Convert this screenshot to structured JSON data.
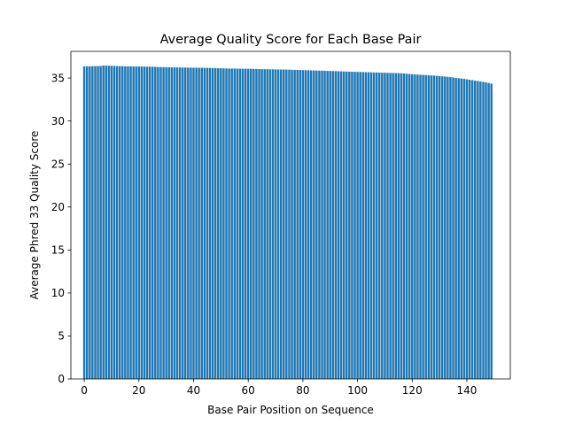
{
  "chart_data": {
    "type": "bar",
    "title": "Average Quality Score for Each Base Pair",
    "xlabel": "Base Pair Position on Sequence",
    "ylabel": "Average Phred 33 Quality Score",
    "xlim": [
      -4.9,
      155.9
    ],
    "ylim": [
      0,
      38.1
    ],
    "xticks": [
      0,
      20,
      40,
      60,
      80,
      100,
      120,
      140
    ],
    "yticks": [
      0,
      5,
      10,
      15,
      20,
      25,
      30,
      35
    ],
    "grid": false,
    "color": "#1f77b4",
    "x": [
      0,
      1,
      2,
      3,
      4,
      5,
      6,
      7,
      8,
      9,
      10,
      11,
      12,
      13,
      14,
      15,
      16,
      17,
      18,
      19,
      20,
      21,
      22,
      23,
      24,
      25,
      26,
      27,
      28,
      29,
      30,
      31,
      32,
      33,
      34,
      35,
      36,
      37,
      38,
      39,
      40,
      41,
      42,
      43,
      44,
      45,
      46,
      47,
      48,
      49,
      50,
      51,
      52,
      53,
      54,
      55,
      56,
      57,
      58,
      59,
      60,
      61,
      62,
      63,
      64,
      65,
      66,
      67,
      68,
      69,
      70,
      71,
      72,
      73,
      74,
      75,
      76,
      77,
      78,
      79,
      80,
      81,
      82,
      83,
      84,
      85,
      86,
      87,
      88,
      89,
      90,
      91,
      92,
      93,
      94,
      95,
      96,
      97,
      98,
      99,
      100,
      101,
      102,
      103,
      104,
      105,
      106,
      107,
      108,
      109,
      110,
      111,
      112,
      113,
      114,
      115,
      116,
      117,
      118,
      119,
      120,
      121,
      122,
      123,
      124,
      125,
      126,
      127,
      128,
      129,
      130,
      131,
      132,
      133,
      134,
      135,
      136,
      137,
      138,
      139,
      140,
      141,
      142,
      143,
      144,
      145,
      146,
      147,
      148,
      149
    ],
    "values": [
      36.35,
      36.36,
      36.37,
      36.38,
      36.38,
      36.39,
      36.4,
      36.45,
      36.44,
      36.43,
      36.42,
      36.4,
      36.39,
      36.38,
      36.37,
      36.36,
      36.36,
      36.35,
      36.35,
      36.34,
      36.34,
      36.33,
      36.33,
      36.32,
      36.32,
      36.31,
      36.3,
      36.28,
      36.27,
      36.26,
      36.26,
      36.25,
      36.24,
      36.24,
      36.23,
      36.23,
      36.22,
      36.22,
      36.21,
      36.21,
      36.2,
      36.2,
      36.19,
      36.19,
      36.18,
      36.18,
      36.17,
      36.16,
      36.15,
      36.14,
      36.13,
      36.12,
      36.11,
      36.1,
      36.1,
      36.1,
      36.09,
      36.09,
      36.08,
      36.08,
      36.07,
      36.07,
      36.06,
      36.05,
      36.04,
      36.03,
      36.02,
      36.02,
      36.01,
      36.01,
      36.0,
      36.0,
      35.99,
      35.99,
      35.98,
      35.97,
      35.96,
      35.95,
      35.94,
      35.93,
      35.92,
      35.91,
      35.9,
      35.89,
      35.88,
      35.87,
      35.86,
      35.85,
      35.84,
      35.83,
      35.82,
      35.81,
      35.8,
      35.79,
      35.78,
      35.76,
      35.75,
      35.74,
      35.73,
      35.72,
      35.71,
      35.7,
      35.69,
      35.68,
      35.67,
      35.66,
      35.65,
      35.64,
      35.63,
      35.62,
      35.61,
      35.6,
      35.59,
      35.58,
      35.57,
      35.56,
      35.55,
      35.53,
      35.5,
      35.47,
      35.44,
      35.42,
      35.4,
      35.38,
      35.36,
      35.34,
      35.32,
      35.3,
      35.28,
      35.26,
      35.23,
      35.2,
      35.17,
      35.14,
      35.1,
      35.06,
      35.02,
      34.98,
      34.94,
      34.9,
      34.85,
      34.8,
      34.75,
      34.7,
      34.65,
      34.6,
      34.55,
      34.5,
      34.42,
      34.35
    ]
  }
}
